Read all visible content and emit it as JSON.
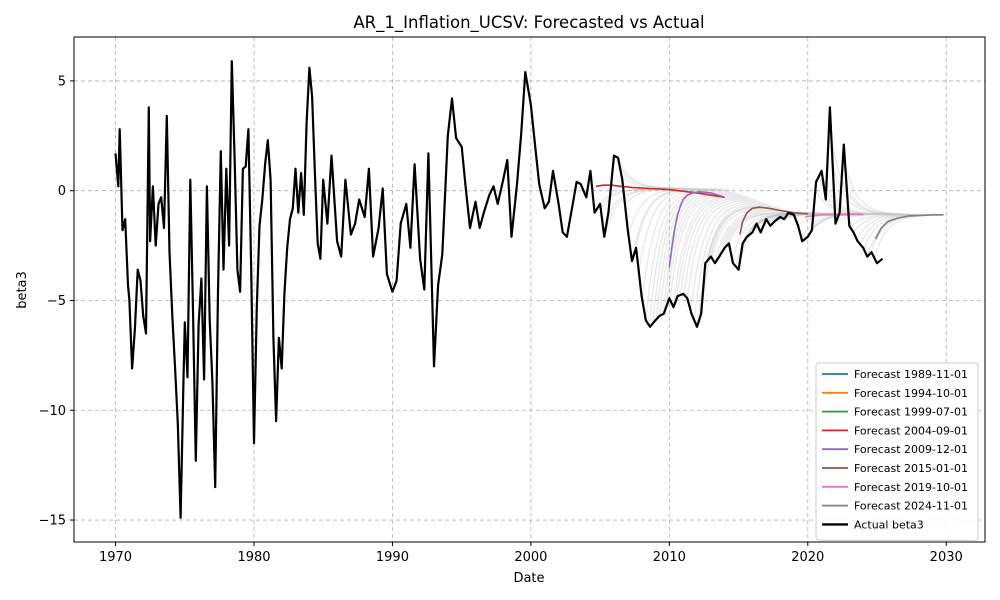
{
  "chart_data": {
    "type": "line",
    "title": "AR_1_Inflation_UCSV: Forecasted vs Actual",
    "xlabel": "Date",
    "ylabel": "beta3",
    "xlim": [
      1967.0,
      2032.8
    ],
    "ylim": [
      -16.0,
      7.0
    ],
    "x_ticks": [
      1970,
      1980,
      1990,
      2000,
      2010,
      2020,
      2030
    ],
    "y_ticks": [
      -15,
      -10,
      -5,
      0,
      5
    ],
    "y_tick_labels": [
      "−15",
      "−10",
      "−5",
      "0",
      "5"
    ],
    "grid": true,
    "legend_position": "lower-right",
    "colors": {
      "Forecast 1989-11-01": "#1f77b4",
      "Forecast 1994-10-01": "#ff7f0e",
      "Forecast 1999-07-01": "#2ca02c",
      "Forecast 2004-09-01": "#d62728",
      "Forecast 2009-12-01": "#9467bd",
      "Forecast 2015-01-01": "#8c564b",
      "Forecast 2019-10-01": "#e377c2",
      "Forecast 2024-11-01": "#7f7f7f",
      "Actual beta3": "#000000",
      "other_forecasts": "#bfbfbf"
    },
    "legend": [
      "Forecast 1989-11-01",
      "Forecast 1994-10-01",
      "Forecast 1999-07-01",
      "Forecast 2004-09-01",
      "Forecast 2009-12-01",
      "Forecast 2015-01-01",
      "Forecast 2019-10-01",
      "Forecast 2024-11-01",
      "Actual beta3"
    ],
    "actual": {
      "name": "Actual beta3",
      "x": [
        1970.0,
        1970.2,
        1970.3,
        1970.5,
        1970.7,
        1970.9,
        1971.0,
        1971.2,
        1971.4,
        1971.6,
        1971.8,
        1972.0,
        1972.2,
        1972.4,
        1972.5,
        1972.7,
        1972.9,
        1973.1,
        1973.3,
        1973.5,
        1973.7,
        1973.9,
        1974.1,
        1974.3,
        1974.5,
        1974.7,
        1974.9,
        1975.0,
        1975.2,
        1975.4,
        1975.6,
        1975.8,
        1976.0,
        1976.2,
        1976.4,
        1976.6,
        1976.8,
        1977.0,
        1977.2,
        1977.4,
        1977.6,
        1977.8,
        1978.0,
        1978.2,
        1978.4,
        1978.6,
        1978.8,
        1979.0,
        1979.2,
        1979.4,
        1979.6,
        1979.8,
        1980.0,
        1980.2,
        1980.4,
        1980.6,
        1980.8,
        1981.0,
        1981.2,
        1981.4,
        1981.6,
        1981.8,
        1982.0,
        1982.2,
        1982.4,
        1982.6,
        1982.8,
        1983.0,
        1983.2,
        1983.4,
        1983.6,
        1983.8,
        1984.0,
        1984.2,
        1984.4,
        1984.6,
        1984.8,
        1985.0,
        1985.3,
        1985.6,
        1986.0,
        1986.3,
        1986.6,
        1987.0,
        1987.3,
        1987.6,
        1988.0,
        1988.3,
        1988.6,
        1989.0,
        1989.3,
        1989.6,
        1990.0,
        1990.3,
        1990.6,
        1991.0,
        1991.3,
        1991.6,
        1992.0,
        1992.3,
        1992.6,
        1993.0,
        1993.3,
        1993.6,
        1994.0,
        1994.3,
        1994.6,
        1995.0,
        1995.3,
        1995.6,
        1996.0,
        1996.3,
        1996.6,
        1997.0,
        1997.3,
        1997.6,
        1998.0,
        1998.3,
        1998.6,
        1999.0,
        1999.3,
        1999.6,
        2000.0,
        2000.3,
        2000.6,
        2001.0,
        2001.3,
        2001.6,
        2002.0,
        2002.3,
        2002.6,
        2003.0,
        2003.3,
        2003.6,
        2004.0,
        2004.3,
        2004.6,
        2005.0,
        2005.3,
        2005.6,
        2006.0,
        2006.3,
        2006.6,
        2007.0,
        2007.3,
        2007.6,
        2008.0,
        2008.3,
        2008.6,
        2009.0,
        2009.3,
        2009.6,
        2010.0,
        2010.3,
        2010.6,
        2011.0,
        2011.3,
        2011.6,
        2012.0,
        2012.3,
        2012.6,
        2013.0,
        2013.3,
        2013.6,
        2014.0,
        2014.3,
        2014.6,
        2015.0,
        2015.3,
        2015.6,
        2016.0,
        2016.3,
        2016.6,
        2017.0,
        2017.3,
        2017.6,
        2018.0,
        2018.3,
        2018.6,
        2019.0,
        2019.3,
        2019.6,
        2020.0,
        2020.3,
        2020.6,
        2021.0,
        2021.3,
        2021.6,
        2022.0,
        2022.3,
        2022.6,
        2023.0,
        2023.3,
        2023.6,
        2024.0,
        2024.3,
        2024.6,
        2025.0,
        2025.4
      ],
      "y": [
        1.7,
        0.2,
        2.8,
        -1.8,
        -1.3,
        -4.3,
        -5.0,
        -8.1,
        -6.3,
        -3.6,
        -4.1,
        -5.7,
        -6.5,
        3.8,
        -2.3,
        0.2,
        -2.5,
        -0.6,
        -0.3,
        -1.7,
        3.4,
        -2.8,
        -5.7,
        -8.1,
        -10.6,
        -14.9,
        -8.8,
        -6.0,
        -8.5,
        0.5,
        -5.7,
        -12.3,
        -6.1,
        -4.0,
        -8.6,
        0.2,
        -5.9,
        -8.7,
        -13.5,
        -4.6,
        1.8,
        -3.6,
        1.0,
        -2.5,
        5.9,
        1.5,
        -3.6,
        -4.6,
        1.0,
        1.1,
        2.8,
        -3.6,
        -11.5,
        -5.3,
        -1.6,
        -0.4,
        1.2,
        2.3,
        0.5,
        -6.7,
        -10.5,
        -6.7,
        -8.1,
        -4.7,
        -2.6,
        -1.3,
        -0.8,
        1.0,
        -1.0,
        0.8,
        -1.1,
        3.1,
        5.6,
        4.3,
        0.8,
        -2.4,
        -3.1,
        0.5,
        -1.5,
        1.6,
        -2.3,
        -3.0,
        0.5,
        -2.0,
        -1.5,
        -0.4,
        -1.2,
        1.0,
        -3.0,
        -1.7,
        0.1,
        -3.8,
        -4.6,
        -4.1,
        -1.5,
        -0.6,
        -2.6,
        1.2,
        -3.1,
        -4.5,
        1.7,
        -8.0,
        -4.3,
        -2.9,
        2.5,
        4.2,
        2.4,
        2.0,
        0.1,
        -1.7,
        -0.5,
        -1.7,
        -1.0,
        -0.2,
        0.2,
        -0.6,
        0.5,
        1.4,
        -2.1,
        0.3,
        2.6,
        5.4,
        3.9,
        2.1,
        0.3,
        -0.8,
        -0.5,
        0.9,
        -0.6,
        -1.9,
        -2.1,
        -0.7,
        0.4,
        0.3,
        -0.3,
        0.9,
        -1.0,
        -0.6,
        -2.1,
        -1.0,
        1.6,
        1.5,
        0.5,
        -1.8,
        -3.2,
        -2.6,
        -4.8,
        -5.9,
        -6.2,
        -5.9,
        -5.7,
        -5.6,
        -4.9,
        -5.3,
        -4.8,
        -4.7,
        -4.9,
        -5.6,
        -6.2,
        -5.6,
        -3.3,
        -3.0,
        -3.3,
        -3.0,
        -2.6,
        -2.4,
        -3.3,
        -3.6,
        -2.4,
        -2.1,
        -1.9,
        -1.5,
        -1.9,
        -1.3,
        -1.6,
        -1.4,
        -1.2,
        -1.3,
        -1.0,
        -1.1,
        -1.6,
        -2.3,
        -2.1,
        -1.8,
        0.4,
        0.9,
        -0.4,
        3.8,
        -1.5,
        -1.0,
        2.1,
        -1.6,
        -1.9,
        -2.3,
        -2.6,
        -3.0,
        -2.8,
        -3.3,
        -3.1
      ]
    },
    "highlighted_forecasts": [
      {
        "name": "Forecast 2004-09-01",
        "x": [
          2004.7,
          2005.2,
          2005.8,
          2006.5,
          2007.3,
          2008.5,
          2010.0,
          2012.0,
          2014.0
        ],
        "y": [
          0.2,
          0.25,
          0.25,
          0.2,
          0.15,
          0.1,
          0.05,
          -0.1,
          -0.3
        ]
      },
      {
        "name": "Forecast 2009-12-01",
        "x": [
          2010.0,
          2010.2,
          2010.4,
          2010.6,
          2010.8,
          2011.0,
          2011.3,
          2011.7,
          2012.2,
          2013.0,
          2014.0
        ],
        "y": [
          -3.5,
          -2.5,
          -1.7,
          -1.1,
          -0.7,
          -0.4,
          -0.2,
          -0.1,
          -0.05,
          -0.1,
          -0.3
        ]
      },
      {
        "name": "Forecast 2015-01-01",
        "x": [
          2015.1,
          2015.3,
          2015.6,
          2016.0,
          2016.5,
          2017.2,
          2018.0,
          2019.0,
          2020.0
        ],
        "y": [
          -2.0,
          -1.4,
          -1.0,
          -0.8,
          -0.75,
          -0.8,
          -0.9,
          -1.0,
          -1.05
        ]
      },
      {
        "name": "Forecast 2019-10-01",
        "x": [
          2019.8,
          2020.3,
          2021.0,
          2022.0,
          2023.0,
          2024.0
        ],
        "y": [
          -1.2,
          -1.15,
          -1.1,
          -1.1,
          -1.08,
          -1.08
        ]
      },
      {
        "name": "Forecast 2024-11-01",
        "x": [
          2024.9,
          2025.3,
          2025.8,
          2026.5,
          2027.3,
          2028.3,
          2029.0,
          2029.8
        ],
        "y": [
          -2.2,
          -1.7,
          -1.4,
          -1.25,
          -1.15,
          -1.12,
          -1.1,
          -1.1
        ]
      }
    ]
  }
}
